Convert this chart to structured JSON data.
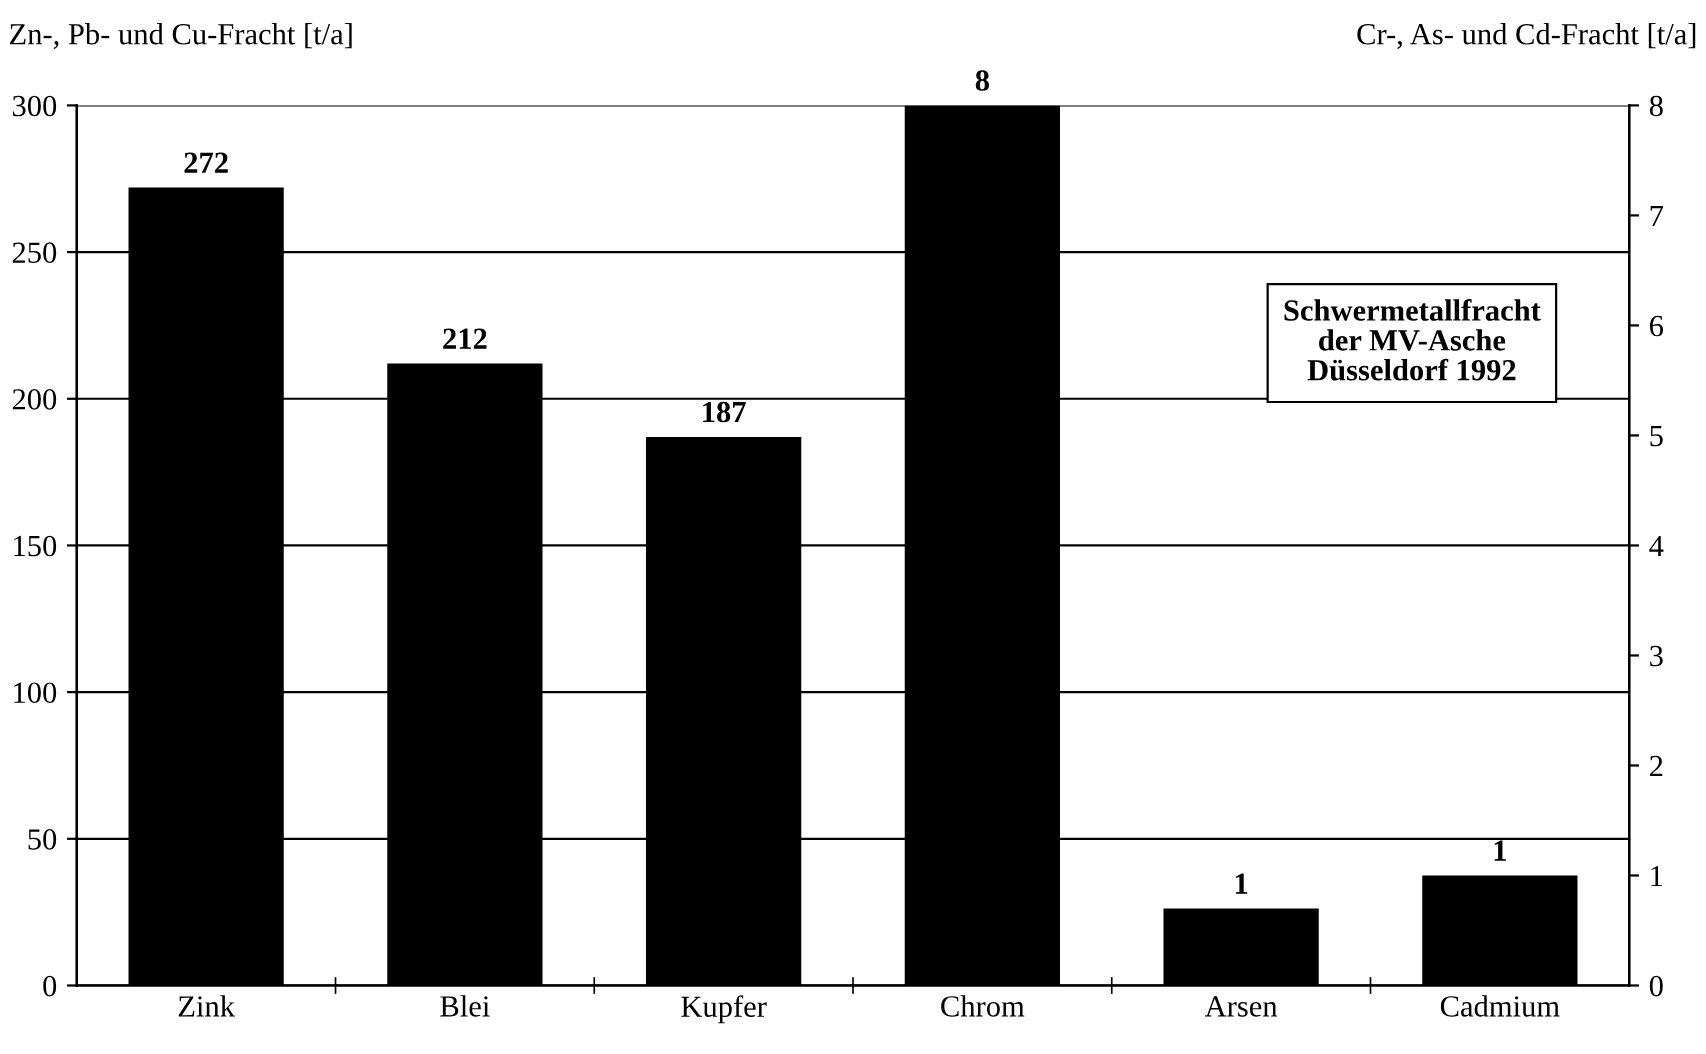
{
  "chart_data": {
    "type": "bar",
    "ylabel": "Zn-, Pb- und Cu-Fracht [t/a]",
    "y2label": "Cr-, As- und Cd-Fracht [t/a]",
    "categories": [
      "Zink",
      "Blei",
      "Kupfer",
      "Chrom",
      "Arsen",
      "Cadmium"
    ],
    "series": [
      {
        "color": "#000000",
        "values": [
          272,
          212,
          187,
          null,
          null,
          null
        ],
        "value_labels": [
          "272",
          "212",
          "187",
          null,
          null,
          null
        ]
      },
      {
        "color": "#000000",
        "axis": "y2",
        "values": [
          null,
          null,
          null,
          8,
          0.7,
          1
        ],
        "value_labels": [
          null,
          null,
          null,
          "8",
          "1",
          "1"
        ]
      }
    ],
    "ylim": [
      0,
      300
    ],
    "yticks": [
      0,
      50,
      100,
      150,
      200,
      250,
      300
    ],
    "y2lim": [
      0,
      8
    ],
    "y2ticks": [
      0,
      1,
      2,
      3,
      4,
      5,
      6,
      7,
      8
    ],
    "grid": "y",
    "annotations": [
      "Schwermetallfracht\nder MV-Asche\nDüsseldorf 1992"
    ]
  }
}
